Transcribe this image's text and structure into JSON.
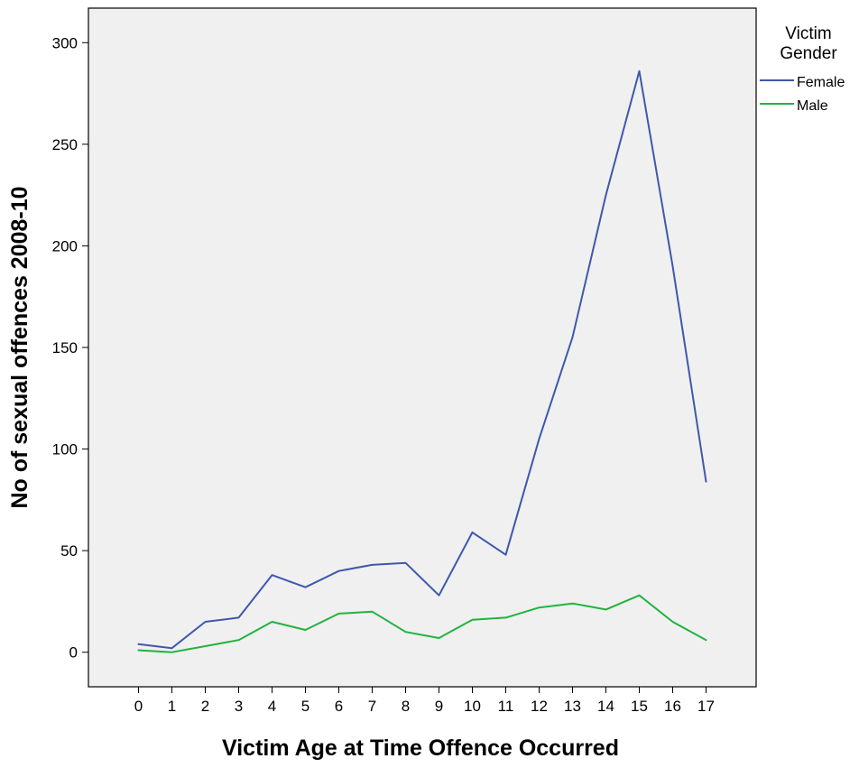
{
  "chart_data": {
    "type": "line",
    "title": "",
    "xlabel": "Victim Age at Time Offence Occurred",
    "ylabel": "No of sexual offences 2008-10",
    "x": [
      0,
      1,
      2,
      3,
      4,
      5,
      6,
      7,
      8,
      9,
      10,
      11,
      12,
      13,
      14,
      15,
      16,
      17
    ],
    "xticks": [
      "0",
      "1",
      "2",
      "3",
      "4",
      "5",
      "6",
      "7",
      "8",
      "9",
      "10",
      "11",
      "12",
      "13",
      "14",
      "15",
      "16",
      "17"
    ],
    "xlim": [
      -1.5,
      18.5
    ],
    "yticks": [
      0,
      50,
      100,
      150,
      200,
      250,
      300
    ],
    "ylim": [
      -17,
      317
    ],
    "grid": false,
    "plot_background": "#f0f0f0",
    "legend": {
      "title_lines": [
        "Victim",
        "Gender"
      ],
      "placement": "right"
    },
    "series": [
      {
        "name": "Female",
        "color": "#3e58ac",
        "values": [
          4,
          2,
          15,
          17,
          38,
          32,
          40,
          43,
          44,
          28,
          59,
          48,
          105,
          155,
          225,
          286,
          190,
          84
        ]
      },
      {
        "name": "Male",
        "color": "#21b33f",
        "values": [
          1,
          0,
          3,
          6,
          15,
          11,
          19,
          20,
          10,
          7,
          16,
          17,
          22,
          24,
          21,
          28,
          15,
          6
        ]
      }
    ]
  }
}
